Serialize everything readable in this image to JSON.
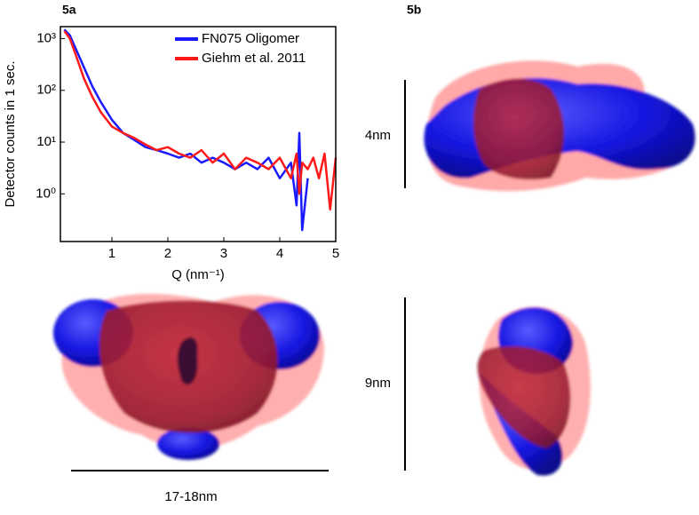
{
  "chart_data": {
    "type": "line",
    "x_label": "Q (nm⁻¹)",
    "y_label": "Detector counts in 1 sec.",
    "x": [
      0.15,
      0.25,
      0.35,
      0.5,
      0.65,
      0.8,
      1.0,
      1.2,
      1.4,
      1.6,
      1.8,
      2.0,
      2.2,
      2.4,
      2.6,
      2.8,
      3.0,
      3.2,
      3.4,
      3.6,
      3.8,
      4.0,
      4.2,
      4.3,
      4.35,
      4.4,
      4.5,
      4.6,
      4.7,
      4.8,
      4.9,
      5.0
    ],
    "series": [
      {
        "name": "FN075 Oligomer",
        "color": "#1a1aff",
        "values": [
          1500,
          1150,
          650,
          280,
          120,
          60,
          27,
          15,
          11,
          8,
          7,
          6,
          5,
          6,
          4,
          5,
          4,
          3,
          4,
          3,
          5,
          2,
          4,
          0.6,
          15,
          0.2,
          2,
          null,
          null,
          null,
          null,
          null
        ]
      },
      {
        "name": "Giehm et al. 2011",
        "color": "#ff1a1a",
        "values": [
          1400,
          1000,
          500,
          170,
          75,
          38,
          20,
          15,
          12,
          9,
          7,
          8,
          6,
          5,
          7,
          4,
          6,
          3,
          5,
          4,
          3,
          5,
          2,
          6,
          1,
          4,
          3,
          5,
          2,
          6,
          0.5,
          5
        ]
      }
    ],
    "xlim": [
      0.08,
      5.0
    ],
    "xticks": [
      1,
      2,
      3,
      4,
      5
    ],
    "ylim": [
      0.12,
      1700
    ],
    "log_y": true,
    "yticks": [
      {
        "value": 1,
        "label": "10⁰"
      },
      {
        "value": 10,
        "label": "10¹"
      },
      {
        "value": 100,
        "label": "10²"
      },
      {
        "value": 1000,
        "label": "10³"
      }
    ],
    "legend": "upper right"
  },
  "figure": {
    "label_a": "5a",
    "label_b": "5b",
    "scale_top": "4nm",
    "scale_right": "9nm",
    "scale_bottom": "17-18nm"
  }
}
